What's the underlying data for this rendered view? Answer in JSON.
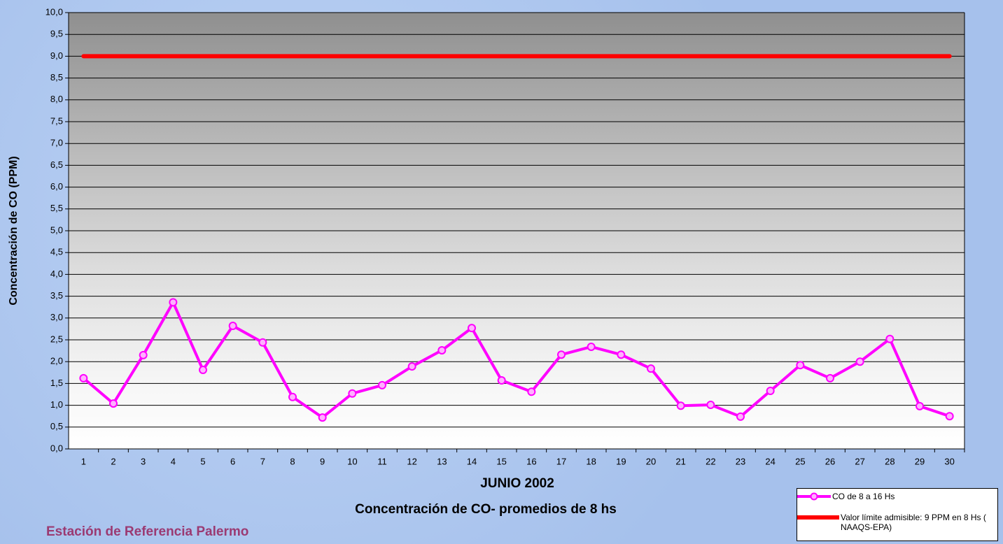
{
  "chart_data": {
    "type": "line",
    "x_label": "JUNIO 2002",
    "subtitle": "Concentración de CO- promedios de 8 hs",
    "y_label": "Concentración de CO (PPM)",
    "note": "Estación de Referencia Palermo",
    "categories": [
      "1",
      "2",
      "3",
      "4",
      "5",
      "6",
      "7",
      "8",
      "9",
      "10",
      "11",
      "12",
      "13",
      "14",
      "15",
      "16",
      "17",
      "18",
      "19",
      "20",
      "21",
      "22",
      "23",
      "24",
      "25",
      "26",
      "27",
      "28",
      "29",
      "30"
    ],
    "series": [
      {
        "name": "CO de 8 a 16 Hs",
        "color": "#ff00ff",
        "marker": "circle",
        "values": [
          1.62,
          1.04,
          2.15,
          3.36,
          1.81,
          2.82,
          2.44,
          1.19,
          0.72,
          1.27,
          1.46,
          1.89,
          2.26,
          2.77,
          1.57,
          1.31,
          2.16,
          2.34,
          2.16,
          1.84,
          0.99,
          1.01,
          0.74,
          1.33,
          1.92,
          1.62,
          2.0,
          2.52,
          0.98,
          0.75
        ]
      },
      {
        "name": "Valor límite admisible: 9 PPM en 8 Hs ( NAAQS-EPA)",
        "color": "#ff0000",
        "values": [
          9,
          9,
          9,
          9,
          9,
          9,
          9,
          9,
          9,
          9,
          9,
          9,
          9,
          9,
          9,
          9,
          9,
          9,
          9,
          9,
          9,
          9,
          9,
          9,
          9,
          9,
          9,
          9,
          9,
          9
        ]
      }
    ],
    "ylim": [
      0,
      10
    ],
    "yticks": [
      {
        "value": 0,
        "label": "0,0"
      },
      {
        "value": 0.5,
        "label": "0,5"
      },
      {
        "value": 1,
        "label": "1,0"
      },
      {
        "value": 1.5,
        "label": "1,5"
      },
      {
        "value": 2,
        "label": "2,0"
      },
      {
        "value": 2.5,
        "label": "2,5"
      },
      {
        "value": 3,
        "label": "3,0"
      },
      {
        "value": 3.5,
        "label": "3,5"
      },
      {
        "value": 4,
        "label": "4,0"
      },
      {
        "value": 4.5,
        "label": "4,5"
      },
      {
        "value": 5,
        "label": "5,0"
      },
      {
        "value": 5.5,
        "label": "5,5"
      },
      {
        "value": 6,
        "label": "6,0"
      },
      {
        "value": 6.5,
        "label": "6,5"
      },
      {
        "value": 7,
        "label": "7,0"
      },
      {
        "value": 7.5,
        "label": "7,5"
      },
      {
        "value": 8,
        "label": "8,0"
      },
      {
        "value": 8.5,
        "label": "8,5"
      },
      {
        "value": 9,
        "label": "9,0"
      },
      {
        "value": 9.5,
        "label": "9,5"
      },
      {
        "value": 10,
        "label": "10,0"
      }
    ],
    "grid": true
  }
}
